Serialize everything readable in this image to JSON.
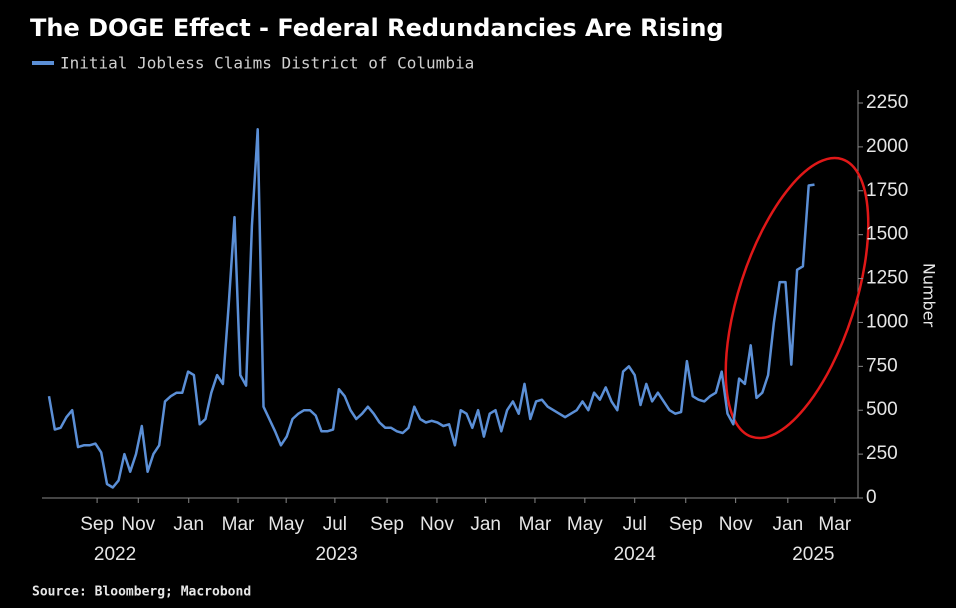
{
  "chart_data": {
    "type": "line",
    "title": "The DOGE Effect - Federal Redundancies Are Rising",
    "ylabel": "Number",
    "source": "Source: Bloomberg; Macrobond",
    "series": [
      {
        "name": "Initial Jobless Claims District of Columbia",
        "color": "#5b8fd6",
        "values": [
          580,
          390,
          400,
          460,
          500,
          290,
          300,
          300,
          310,
          260,
          80,
          60,
          100,
          250,
          150,
          250,
          410,
          150,
          250,
          300,
          550,
          580,
          600,
          600,
          720,
          700,
          420,
          450,
          600,
          700,
          650,
          1100,
          1600,
          700,
          640,
          1550,
          2100,
          520,
          450,
          380,
          300,
          350,
          450,
          480,
          500,
          500,
          470,
          380,
          380,
          390,
          620,
          580,
          500,
          450,
          480,
          520,
          480,
          430,
          400,
          400,
          380,
          370,
          400,
          520,
          450,
          430,
          440,
          430,
          410,
          420,
          300,
          500,
          480,
          400,
          500,
          350,
          480,
          500,
          380,
          500,
          550,
          480,
          650,
          450,
          550,
          560,
          520,
          500,
          480,
          460,
          480,
          500,
          550,
          500,
          600,
          560,
          630,
          550,
          500,
          720,
          750,
          700,
          530,
          650,
          550,
          600,
          550,
          500,
          480,
          490,
          780,
          580,
          560,
          550,
          580,
          600,
          720,
          480,
          420,
          680,
          650,
          870,
          570,
          600,
          700,
          1000,
          1230,
          1230,
          760,
          1300,
          1320,
          1780,
          1785
        ]
      }
    ],
    "xlim": [
      -1.2,
      139.5
    ],
    "xticks": [
      {
        "value": 8.3,
        "label": "Sep"
      },
      {
        "value": 15.4,
        "label": "Nov"
      },
      {
        "value": 24.1,
        "label": "Jan"
      },
      {
        "value": 32.6,
        "label": "Mar"
      },
      {
        "value": 40.9,
        "label": "May"
      },
      {
        "value": 49.3,
        "label": "Jul"
      },
      {
        "value": 58.3,
        "label": "Sep"
      },
      {
        "value": 66.9,
        "label": "Nov"
      },
      {
        "value": 75.3,
        "label": "Jan"
      },
      {
        "value": 83.8,
        "label": "Mar"
      },
      {
        "value": 92.4,
        "label": "May"
      },
      {
        "value": 101,
        "label": "Jul"
      },
      {
        "value": 109.8,
        "label": "Sep"
      },
      {
        "value": 118.4,
        "label": "Nov"
      },
      {
        "value": 127.4,
        "label": "Jan"
      },
      {
        "value": 135.5,
        "label": "Mar"
      }
    ],
    "xtick_years": [
      {
        "value": 11.4,
        "label": "2022"
      },
      {
        "value": 49.6,
        "label": "2023"
      },
      {
        "value": 101,
        "label": "2024"
      },
      {
        "value": 131.8,
        "label": "2025"
      }
    ],
    "ylim": [
      0,
      2250
    ],
    "yticks": [
      0,
      250,
      500,
      750,
      1000,
      1250,
      1500,
      1750,
      2000,
      2250
    ],
    "grid": false
  }
}
